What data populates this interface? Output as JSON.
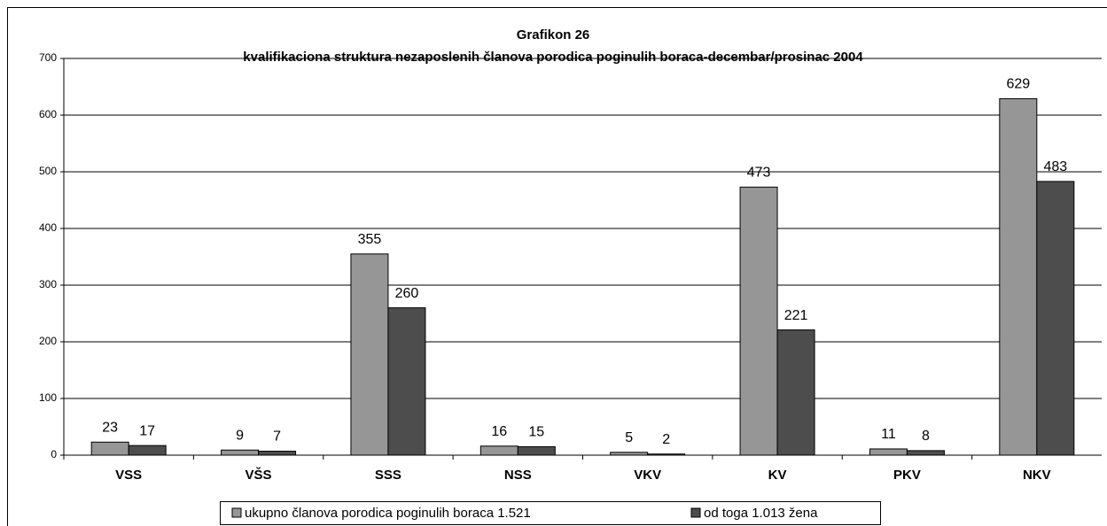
{
  "chart_data": {
    "type": "bar",
    "title": "Grafikon 26",
    "subtitle": "kvalifikaciona struktura nezaposlenih članova porodica poginulih boraca-decembar/prosinac 2004",
    "categories": [
      "VSS",
      "VŠS",
      "SSS",
      "NSS",
      "VKV",
      "KV",
      "PKV",
      "NKV"
    ],
    "series": [
      {
        "name": "ukupno članova porodica poginulih boraca 1.521",
        "color": "#969696",
        "values": [
          23,
          9,
          355,
          16,
          5,
          473,
          11,
          629
        ]
      },
      {
        "name": "od toga 1.013 žena",
        "color": "#4d4d4d",
        "values": [
          17,
          7,
          260,
          15,
          2,
          221,
          8,
          483
        ]
      }
    ],
    "ylim": [
      0,
      700
    ],
    "yticks": [
      0,
      100,
      200,
      300,
      400,
      500,
      600,
      700
    ],
    "grid": true,
    "legend": "bottom"
  }
}
